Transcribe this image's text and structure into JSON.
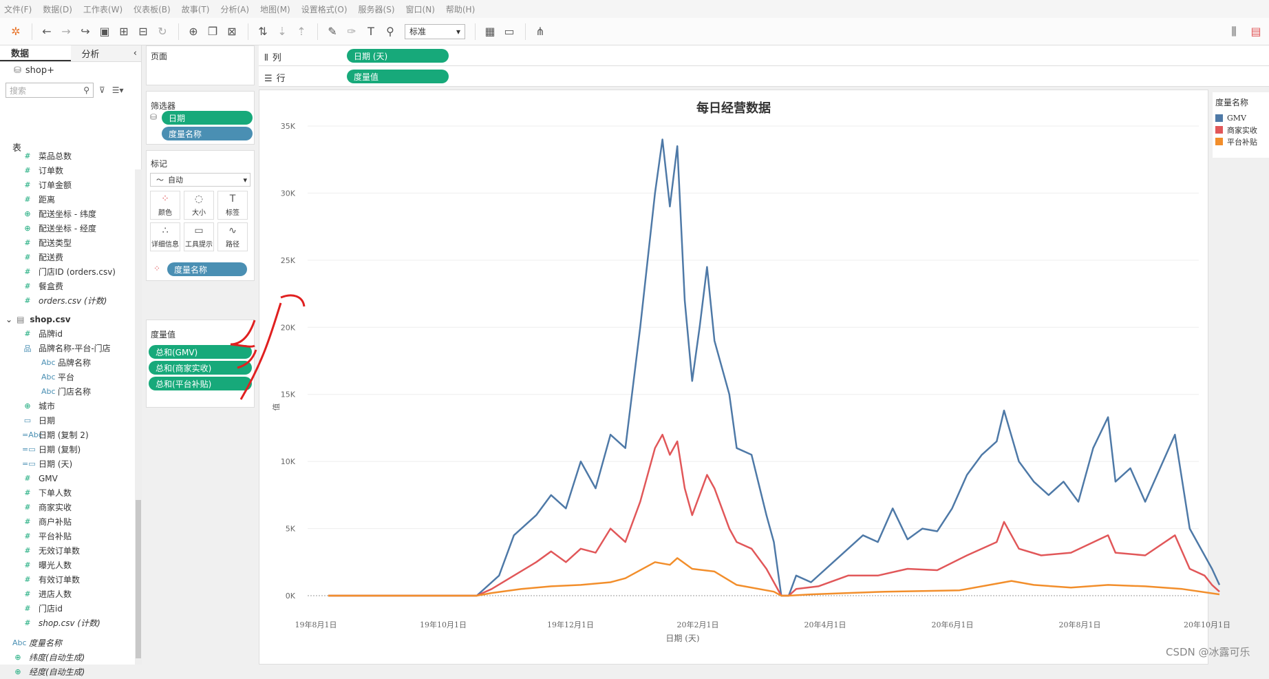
{
  "menu": [
    "文件(F)",
    "数据(D)",
    "工作表(W)",
    "仪表板(B)",
    "故事(T)",
    "分析(A)",
    "地图(M)",
    "设置格式(O)",
    "服务器(S)",
    "窗口(N)",
    "帮助(H)"
  ],
  "toolbar": {
    "fit_select": "标准"
  },
  "left_panel": {
    "tab_data": "数据",
    "tab_analysis": "分析",
    "source": "shop+",
    "search_placeholder": "搜索",
    "section_table": "表",
    "fields1": [
      {
        "icon": "#",
        "label": "菜品总数"
      },
      {
        "icon": "#",
        "label": "订单数"
      },
      {
        "icon": "#",
        "label": "订单金额"
      },
      {
        "icon": "#",
        "label": "距离"
      },
      {
        "icon": "⊕",
        "label": "配送坐标 - 纬度"
      },
      {
        "icon": "⊕",
        "label": "配送坐标 - 经度"
      },
      {
        "icon": "#",
        "label": "配送类型"
      },
      {
        "icon": "#",
        "label": "配送费"
      },
      {
        "icon": "#",
        "label": "门店ID (orders.csv)"
      },
      {
        "icon": "#",
        "label": "餐盒费"
      },
      {
        "icon": "#",
        "label": "orders.csv (计数)"
      }
    ],
    "table2": "shop.csv",
    "fields2": [
      {
        "icon": "#",
        "label": "品牌id",
        "indent": 0
      },
      {
        "icon": "品",
        "label": "品牌名称-平台-门店",
        "indent": 0
      },
      {
        "icon": "Abc",
        "label": "品牌名称",
        "indent": 1
      },
      {
        "icon": "Abc",
        "label": "平台",
        "indent": 1
      },
      {
        "icon": "Abc",
        "label": "门店名称",
        "indent": 1
      },
      {
        "icon": "⊕",
        "label": "城市",
        "indent": 0
      },
      {
        "icon": "▭",
        "label": "日期",
        "indent": 0
      },
      {
        "icon": "=Abc",
        "label": "日期 (复制 2)",
        "indent": 0
      },
      {
        "icon": "=▭",
        "label": "日期 (复制)",
        "indent": 0
      },
      {
        "icon": "=▭",
        "label": "日期 (天)",
        "indent": 0
      },
      {
        "icon": "#",
        "label": "GMV",
        "indent": 0
      },
      {
        "icon": "#",
        "label": "下单人数",
        "indent": 0
      },
      {
        "icon": "#",
        "label": "商家实收",
        "indent": 0
      },
      {
        "icon": "#",
        "label": "商户补贴",
        "indent": 0
      },
      {
        "icon": "#",
        "label": "平台补贴",
        "indent": 0
      },
      {
        "icon": "#",
        "label": "无效订单数",
        "indent": 0
      },
      {
        "icon": "#",
        "label": "曝光人数",
        "indent": 0
      },
      {
        "icon": "#",
        "label": "有效订单数",
        "indent": 0
      },
      {
        "icon": "#",
        "label": "进店人数",
        "indent": 0
      },
      {
        "icon": "#",
        "label": "门店id",
        "indent": 0
      },
      {
        "icon": "#",
        "label": "shop.csv (计数)",
        "indent": 0
      }
    ],
    "fields3": [
      {
        "icon": "Abc",
        "label": "度量名称"
      },
      {
        "icon": "⊕",
        "label": "纬度(自动生成)"
      },
      {
        "icon": "⊕",
        "label": "经度(自动生成)"
      }
    ]
  },
  "shelves": {
    "pages": "页面",
    "filters": "筛选器",
    "filter_pills": [
      "日期",
      "度量名称"
    ],
    "marks": "标记",
    "mark_type": "自动",
    "mark_buttons": [
      "颜色",
      "大小",
      "标签",
      "详细信息",
      "工具提示",
      "路径"
    ],
    "color_pill": "度量名称",
    "measure_values": "度量值",
    "mv_pills": [
      "总和(GMV)",
      "总和(商家实收)",
      "总和(平台补贴)"
    ],
    "columns_label": "列",
    "columns_pill": "日期 (天)",
    "rows_label": "行",
    "rows_pill": "度量值"
  },
  "legend": {
    "title": "度量名称",
    "items": [
      {
        "name": "GMV",
        "color": "#4e79a7"
      },
      {
        "name": "商家实收",
        "color": "#e15759"
      },
      {
        "name": "平台补贴",
        "color": "#f28e2b"
      }
    ]
  },
  "watermark": "CSDN @冰露可乐",
  "chart_data": {
    "type": "line",
    "title": "每日经营数据",
    "xlabel": "日期 (天)",
    "ylabel": "值",
    "ylim": [
      0,
      35000
    ],
    "yticks": [
      "0K",
      "5K",
      "10K",
      "15K",
      "20K",
      "25K",
      "30K",
      "35K"
    ],
    "xticks": [
      "19年8月1日",
      "19年10月1日",
      "19年12月1日",
      "20年2月1日",
      "20年4月1日",
      "20年6月1日",
      "20年8月1日",
      "20年10月1日"
    ],
    "series": [
      {
        "name": "GMV",
        "color": "#4e79a7",
        "points": [
          [
            0,
            0
          ],
          [
            1,
            0
          ],
          [
            1.5,
            0
          ],
          [
            2,
            0
          ],
          [
            2.3,
            1500
          ],
          [
            2.5,
            4500
          ],
          [
            2.8,
            6000
          ],
          [
            3,
            7500
          ],
          [
            3.2,
            6500
          ],
          [
            3.4,
            10000
          ],
          [
            3.6,
            8000
          ],
          [
            3.8,
            12000
          ],
          [
            4,
            11000
          ],
          [
            4.2,
            20000
          ],
          [
            4.4,
            30000
          ],
          [
            4.5,
            34000
          ],
          [
            4.6,
            29000
          ],
          [
            4.7,
            33500
          ],
          [
            4.8,
            22000
          ],
          [
            4.9,
            16000
          ],
          [
            5,
            20000
          ],
          [
            5.1,
            24500
          ],
          [
            5.2,
            19000
          ],
          [
            5.4,
            15000
          ],
          [
            5.5,
            11000
          ],
          [
            5.7,
            10500
          ],
          [
            5.9,
            6000
          ],
          [
            6,
            4000
          ],
          [
            6.1,
            0
          ],
          [
            6.2,
            0
          ],
          [
            6.3,
            1500
          ],
          [
            6.5,
            1000
          ],
          [
            6.8,
            2500
          ],
          [
            7,
            3500
          ],
          [
            7.2,
            4500
          ],
          [
            7.4,
            4000
          ],
          [
            7.6,
            6500
          ],
          [
            7.8,
            4200
          ],
          [
            8,
            5000
          ],
          [
            8.2,
            4800
          ],
          [
            8.4,
            6500
          ],
          [
            8.6,
            9000
          ],
          [
            8.8,
            10500
          ],
          [
            9,
            11500
          ],
          [
            9.1,
            13800
          ],
          [
            9.3,
            10000
          ],
          [
            9.5,
            8500
          ],
          [
            9.7,
            7500
          ],
          [
            9.9,
            8500
          ],
          [
            10.1,
            7000
          ],
          [
            10.3,
            11000
          ],
          [
            10.5,
            13300
          ],
          [
            10.6,
            8500
          ],
          [
            10.8,
            9500
          ],
          [
            11,
            7000
          ],
          [
            11.2,
            9500
          ],
          [
            11.4,
            12000
          ],
          [
            11.6,
            5000
          ],
          [
            11.8,
            3000
          ],
          [
            11.9,
            2000
          ],
          [
            12,
            800
          ]
        ]
      },
      {
        "name": "商家实收",
        "color": "#e15759",
        "points": [
          [
            0,
            0
          ],
          [
            1,
            0
          ],
          [
            1.5,
            0
          ],
          [
            2,
            0
          ],
          [
            2.2,
            500
          ],
          [
            2.5,
            1500
          ],
          [
            2.8,
            2500
          ],
          [
            3,
            3300
          ],
          [
            3.2,
            2500
          ],
          [
            3.4,
            3500
          ],
          [
            3.6,
            3200
          ],
          [
            3.8,
            5000
          ],
          [
            4,
            4000
          ],
          [
            4.2,
            7000
          ],
          [
            4.4,
            11000
          ],
          [
            4.5,
            12000
          ],
          [
            4.6,
            10500
          ],
          [
            4.7,
            11500
          ],
          [
            4.8,
            8000
          ],
          [
            4.9,
            6000
          ],
          [
            5,
            7500
          ],
          [
            5.1,
            9000
          ],
          [
            5.2,
            8000
          ],
          [
            5.4,
            5000
          ],
          [
            5.5,
            4000
          ],
          [
            5.7,
            3500
          ],
          [
            5.9,
            2000
          ],
          [
            6,
            1000
          ],
          [
            6.1,
            0
          ],
          [
            6.2,
            0
          ],
          [
            6.3,
            500
          ],
          [
            6.6,
            700
          ],
          [
            7,
            1500
          ],
          [
            7.4,
            1500
          ],
          [
            7.8,
            2000
          ],
          [
            8.2,
            1900
          ],
          [
            8.6,
            3000
          ],
          [
            9,
            4000
          ],
          [
            9.1,
            5500
          ],
          [
            9.3,
            3500
          ],
          [
            9.6,
            3000
          ],
          [
            10,
            3200
          ],
          [
            10.5,
            4500
          ],
          [
            10.6,
            3200
          ],
          [
            11,
            3000
          ],
          [
            11.4,
            4500
          ],
          [
            11.6,
            2000
          ],
          [
            11.8,
            1500
          ],
          [
            11.9,
            800
          ],
          [
            12,
            300
          ]
        ]
      },
      {
        "name": "平台补贴",
        "color": "#f28e2b",
        "points": [
          [
            0,
            0
          ],
          [
            1,
            0
          ],
          [
            1.5,
            0
          ],
          [
            2,
            0
          ],
          [
            2.2,
            200
          ],
          [
            2.6,
            500
          ],
          [
            3,
            700
          ],
          [
            3.4,
            800
          ],
          [
            3.8,
            1000
          ],
          [
            4,
            1300
          ],
          [
            4.4,
            2500
          ],
          [
            4.6,
            2300
          ],
          [
            4.7,
            2800
          ],
          [
            4.9,
            2000
          ],
          [
            5.2,
            1800
          ],
          [
            5.5,
            800
          ],
          [
            6,
            300
          ],
          [
            6.1,
            0
          ],
          [
            6.2,
            0
          ],
          [
            6.5,
            100
          ],
          [
            7,
            200
          ],
          [
            7.5,
            300
          ],
          [
            8,
            350
          ],
          [
            8.5,
            400
          ],
          [
            9,
            900
          ],
          [
            9.2,
            1100
          ],
          [
            9.5,
            800
          ],
          [
            10,
            600
          ],
          [
            10.5,
            800
          ],
          [
            11,
            700
          ],
          [
            11.5,
            500
          ],
          [
            12,
            100
          ]
        ]
      }
    ]
  }
}
